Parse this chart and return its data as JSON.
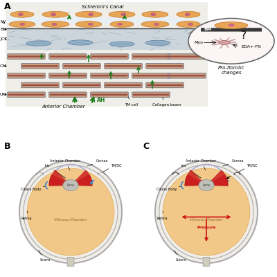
{
  "panel_A_label": "A",
  "panel_B_label": "B",
  "panel_C_label": "C",
  "schlemms_canal": "Schlemm's Canal",
  "tm_cell": "TM cell",
  "collagen_beam": "Collagen beam",
  "anterior_chamber": "Anterior Chamber",
  "ah_label": "AH",
  "pro_fibrotic": "Pro-fibrotic\nchanges",
  "bm_label": "BM",
  "myo_label": "Myo",
  "eda_fn_label": "EDA+-FN",
  "orange_color": "#E8A555",
  "orange_edge": "#C07828",
  "nucleus_color": "#CC6688",
  "blue_jct": "#A8BED0",
  "mesh_color": "#7090A8",
  "beam_tan": "#C8A080",
  "beam_red": "#8B3030",
  "beam_blue_edge": "#4466AA",
  "green_arrow": "#1A7A1A",
  "vitreous_color": "#F2C888",
  "vitreous_edge": "#E0A850",
  "sclera_white": "#F0EDE8",
  "sclera_gray": "#AAAAAA",
  "iris_red": "#CC2020",
  "lens_gray": "#C0C0B8",
  "lens_edge": "#909090",
  "blue_flow": "#4488CC",
  "pressure_red": "#CC1111",
  "inset_bg": "#F8F0F0",
  "inset_circle_edge": "#666666",
  "bm_dark": "#383838",
  "myo_pink": "#D4A0A0",
  "myo_edge": "#A06060"
}
